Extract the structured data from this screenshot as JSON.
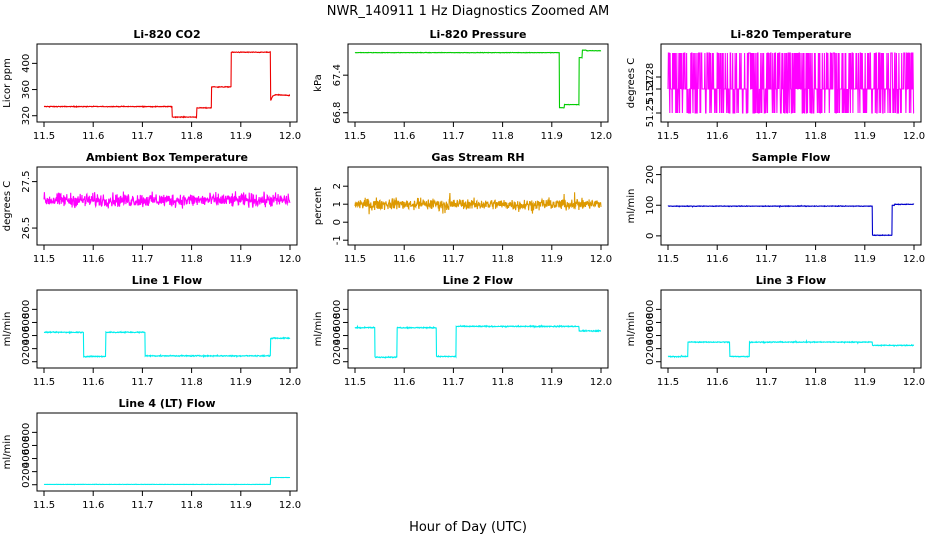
{
  "figure": {
    "title": "NWR_140911  1 Hz Diagnostics Zoomed AM",
    "xlabel": "Hour of Day (UTC)"
  },
  "chart_data": [
    {
      "type": "line",
      "title": "Li-820 CO2",
      "ylabel": "Licor ppm",
      "color": "#ee0000",
      "xlim": [
        11.5,
        12.0
      ],
      "ylim": [
        315,
        425
      ],
      "xticks": [
        "11.5",
        "11.6",
        "11.7",
        "11.8",
        "11.9",
        "12.0"
      ],
      "yticks": [
        320,
        360,
        400
      ],
      "noise": 0.8,
      "x": [
        11.5,
        11.76,
        11.76,
        11.81,
        11.81,
        11.84,
        11.84,
        11.88,
        11.88,
        11.96,
        11.96,
        11.965,
        11.97,
        12.0
      ],
      "y": [
        334,
        334,
        318,
        318,
        332,
        332,
        364,
        364,
        417,
        417,
        342,
        350,
        352,
        351
      ]
    },
    {
      "type": "line",
      "title": "Li-820 Pressure",
      "ylabel": "kPa",
      "color": "#00cc00",
      "xlim": [
        11.5,
        12.0
      ],
      "ylim": [
        66.7,
        67.85
      ],
      "xticks": [
        "11.5",
        "11.6",
        "11.7",
        "11.8",
        "11.9",
        "12.0"
      ],
      "yticks": [
        66.8,
        67.4
      ],
      "ytick_labels": [
        "66.8",
        "67.4"
      ],
      "noise": 0.005,
      "x": [
        11.5,
        11.915,
        11.915,
        11.925,
        11.925,
        11.955,
        11.955,
        11.962,
        11.962,
        11.97,
        11.97,
        12.0
      ],
      "y": [
        67.76,
        67.76,
        66.88,
        66.88,
        66.93,
        66.93,
        67.68,
        67.68,
        67.8,
        67.8,
        67.79,
        67.79
      ]
    },
    {
      "type": "line",
      "title": "Li-820 Temperature",
      "ylabel": "degrees C",
      "color": "#ff00ff",
      "xlim": [
        11.5,
        12.0
      ],
      "ylim": [
        51.245,
        51.305
      ],
      "xticks": [
        "11.5",
        "11.6",
        "11.7",
        "11.8",
        "11.9",
        "12.0"
      ],
      "yticks": [
        51.25,
        51.27,
        51.28
      ],
      "ytick_labels": [
        "51.25",
        "51.27",
        "51.28"
      ],
      "noise": 0,
      "levels": [
        51.25,
        51.27,
        51.3
      ],
      "base": 51.27,
      "spikes": 0.5
    },
    {
      "type": "line",
      "title": "Ambient Box Temperature",
      "ylabel": "degrees C",
      "color": "#ff00ff",
      "xlim": [
        11.5,
        12.0
      ],
      "ylim": [
        26.2,
        27.75
      ],
      "xticks": [
        "11.5",
        "11.6",
        "11.7",
        "11.8",
        "11.9",
        "12.0"
      ],
      "yticks": [
        26.5,
        27.5
      ],
      "ytick_labels": [
        "26.5",
        "27.5"
      ],
      "noise": 0.22,
      "x": [
        11.5,
        12.0
      ],
      "y": [
        27.1,
        27.1
      ]
    },
    {
      "type": "line",
      "title": "Gas Stream RH",
      "ylabel": "percent",
      "color": "#dd9900",
      "xlim": [
        11.5,
        12.0
      ],
      "ylim": [
        -1.1,
        2.9
      ],
      "xticks": [
        "11.5",
        "11.6",
        "11.7",
        "11.8",
        "11.9",
        "12.0"
      ],
      "yticks": [
        -1,
        0,
        1,
        2
      ],
      "ytick_labels": [
        "-1",
        "0",
        "1",
        "2"
      ],
      "noise": 0.45,
      "x": [
        11.5,
        12.0
      ],
      "y": [
        1.0,
        1.0
      ]
    },
    {
      "type": "line",
      "title": "Sample Flow",
      "ylabel": "ml/min",
      "color": "#0000cc",
      "xlim": [
        11.5,
        12.0
      ],
      "ylim": [
        -20,
        215
      ],
      "xticks": [
        "11.5",
        "11.6",
        "11.7",
        "11.8",
        "11.9",
        "12.0"
      ],
      "yticks": [
        0,
        100,
        200
      ],
      "noise": 1.5,
      "x": [
        11.5,
        11.915,
        11.915,
        11.955,
        11.955,
        11.96,
        11.96,
        12.0
      ],
      "y": [
        97,
        97,
        2,
        2,
        100,
        100,
        103,
        103
      ]
    },
    {
      "type": "line",
      "title": "Line 1 Flow",
      "ylabel": "ml/min",
      "color": "#00eeee",
      "xlim": [
        11.5,
        12.0
      ],
      "ylim": [
        -50,
        1050
      ],
      "xticks": [
        "11.5",
        "11.6",
        "11.7",
        "11.8",
        "11.9",
        "12.0"
      ],
      "yticks": [
        0,
        200,
        400,
        600,
        800
      ],
      "noise": 12,
      "x": [
        11.5,
        11.58,
        11.58,
        11.625,
        11.625,
        11.705,
        11.705,
        11.96,
        11.96,
        12.0
      ],
      "y": [
        450,
        450,
        80,
        80,
        450,
        450,
        90,
        90,
        360,
        360
      ]
    },
    {
      "type": "line",
      "title": "Line 2 Flow",
      "ylabel": "ml/min",
      "color": "#00eeee",
      "xlim": [
        11.5,
        12.0
      ],
      "ylim": [
        -50,
        1050
      ],
      "xticks": [
        "11.5",
        "11.6",
        "11.7",
        "11.8",
        "11.9",
        "12.0"
      ],
      "yticks": [
        0,
        200,
        400,
        600,
        800
      ],
      "noise": 12,
      "x": [
        11.5,
        11.54,
        11.54,
        11.585,
        11.585,
        11.665,
        11.665,
        11.705,
        11.705,
        11.955,
        11.955,
        12.0
      ],
      "y": [
        520,
        520,
        70,
        70,
        520,
        520,
        80,
        80,
        540,
        540,
        470,
        470
      ]
    },
    {
      "type": "line",
      "title": "Line 3 Flow",
      "ylabel": "ml/min",
      "color": "#00eeee",
      "xlim": [
        11.5,
        12.0
      ],
      "ylim": [
        -50,
        1050
      ],
      "xticks": [
        "11.5",
        "11.6",
        "11.7",
        "11.8",
        "11.9",
        "12.0"
      ],
      "yticks": [
        0,
        200,
        400,
        600,
        800
      ],
      "noise": 10,
      "x": [
        11.5,
        11.54,
        11.54,
        11.625,
        11.625,
        11.665,
        11.665,
        11.915,
        11.915,
        12.0
      ],
      "y": [
        80,
        80,
        300,
        300,
        80,
        80,
        300,
        300,
        250,
        250
      ]
    },
    {
      "type": "line",
      "title": "Line 4 (LT) Flow",
      "ylabel": "ml/min",
      "color": "#00eeee",
      "xlim": [
        11.5,
        12.0
      ],
      "ylim": [
        -50,
        1050
      ],
      "xticks": [
        "11.5",
        "11.6",
        "11.7",
        "11.8",
        "11.9",
        "12.0"
      ],
      "yticks": [
        0,
        200,
        400,
        600,
        800
      ],
      "noise": 3,
      "x": [
        11.5,
        11.96,
        11.96,
        12.0
      ],
      "y": [
        5,
        5,
        110,
        110
      ]
    }
  ]
}
